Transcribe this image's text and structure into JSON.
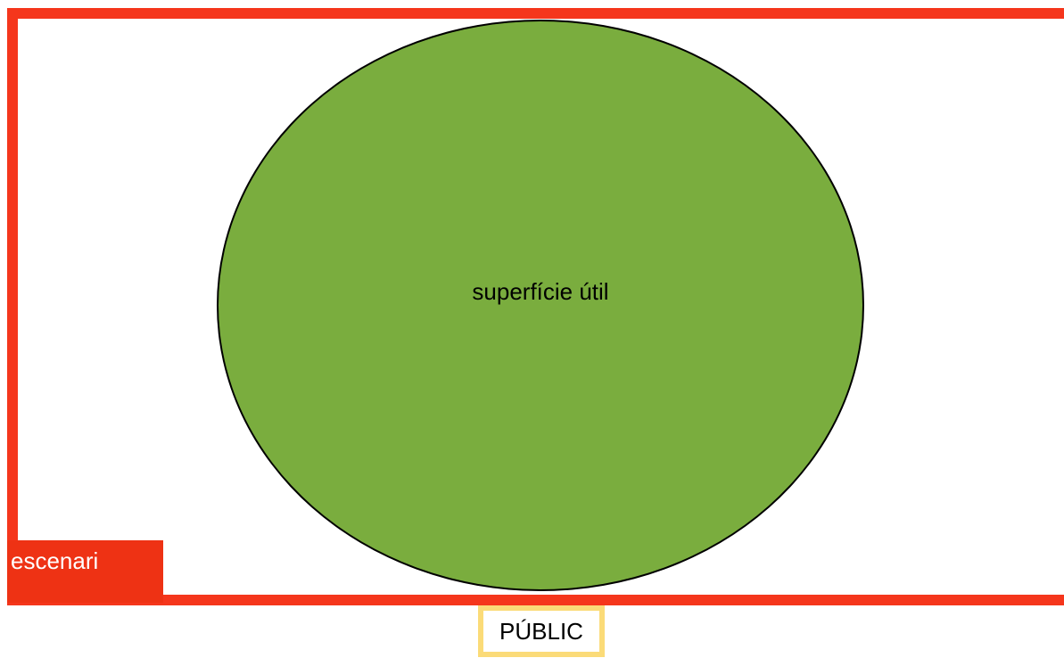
{
  "diagram": {
    "stage": {
      "label": "escenari",
      "frame_color": "#f5361c",
      "tag_color": "#ee3214"
    },
    "usable_area": {
      "label": "superfície útil",
      "fill_color": "#7aad3e",
      "outline_color": "#000000"
    },
    "audience": {
      "label": "PÚBLIC",
      "border_color": "#fbdb78"
    }
  }
}
